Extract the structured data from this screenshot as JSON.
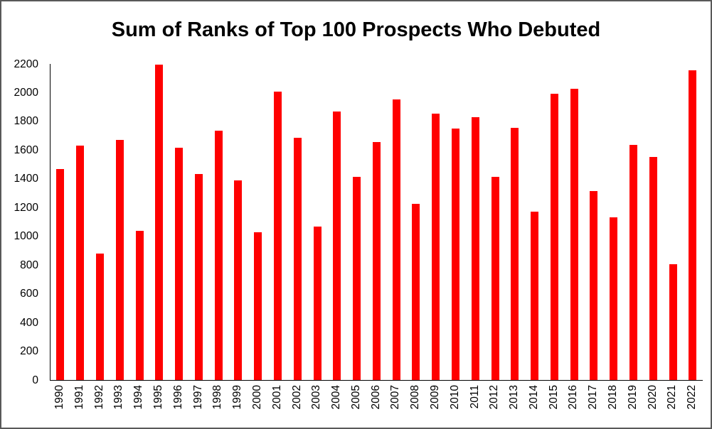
{
  "chart_data": {
    "type": "bar",
    "title": "Sum of Ranks of Top 100 Prospects Who Debuted",
    "xlabel": "",
    "ylabel": "",
    "bar_color": "#FF0000",
    "axis_color": "#000000",
    "background_color": "#FFFFFF",
    "border_color": "#595959",
    "grid": false,
    "legend": false,
    "ylim": [
      0,
      2200
    ],
    "ytick_step": 200,
    "categories": [
      "1990",
      "1991",
      "1992",
      "1993",
      "1994",
      "1995",
      "1996",
      "1997",
      "1998",
      "1999",
      "2000",
      "2001",
      "2002",
      "2003",
      "2004",
      "2005",
      "2006",
      "2007",
      "2008",
      "2009",
      "2010",
      "2011",
      "2012",
      "2013",
      "2014",
      "2015",
      "2016",
      "2017",
      "2018",
      "2019",
      "2020",
      "2021",
      "2022"
    ],
    "values": [
      1470,
      1630,
      880,
      1670,
      1040,
      2195,
      1615,
      1435,
      1735,
      1390,
      1030,
      2005,
      1685,
      1070,
      1870,
      1415,
      1655,
      1955,
      1225,
      1855,
      1750,
      1830,
      1415,
      1755,
      1170,
      1990,
      2025,
      1315,
      1130,
      1635,
      1550,
      805,
      2155
    ]
  }
}
